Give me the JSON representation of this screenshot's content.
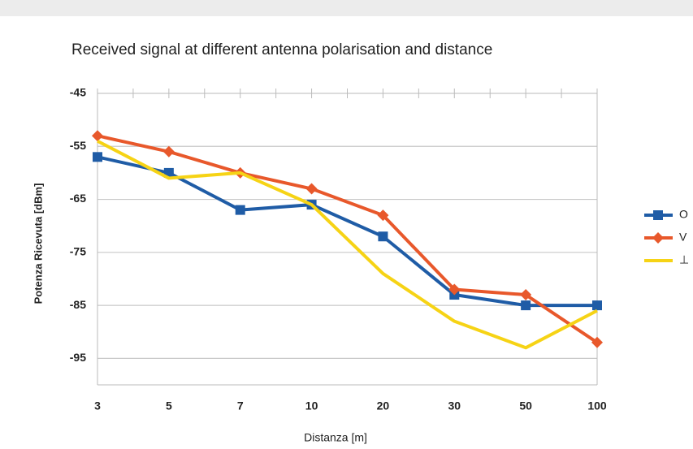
{
  "chart_data": {
    "type": "line",
    "title": "Received signal at different antenna polarisation and distance",
    "x_label": "Distanza [m]",
    "y_label": "Potenza Ricevuta [dBm]",
    "categories": [
      "3",
      "5",
      "7",
      "10",
      "20",
      "30",
      "50",
      "100"
    ],
    "series": [
      {
        "name": "O",
        "color": "#1f5ca6",
        "marker": "square",
        "values": [
          -57,
          -60,
          -67,
          -66,
          -72,
          -83,
          -85,
          -85
        ]
      },
      {
        "name": "V",
        "color": "#e8582b",
        "marker": "diamond",
        "values": [
          -53,
          -56,
          -60,
          -63,
          -68,
          -82,
          -83,
          -92
        ]
      },
      {
        "name": "⊥",
        "color": "#f6d315",
        "marker": "none",
        "values": [
          -54,
          -61,
          -60,
          -66,
          -79,
          -88,
          -93,
          -86
        ]
      }
    ],
    "ylim": [
      -100,
      -45
    ],
    "yticks": [
      -45,
      -55,
      -65,
      -75,
      -85,
      -95
    ],
    "grid": true,
    "legend": "right"
  }
}
